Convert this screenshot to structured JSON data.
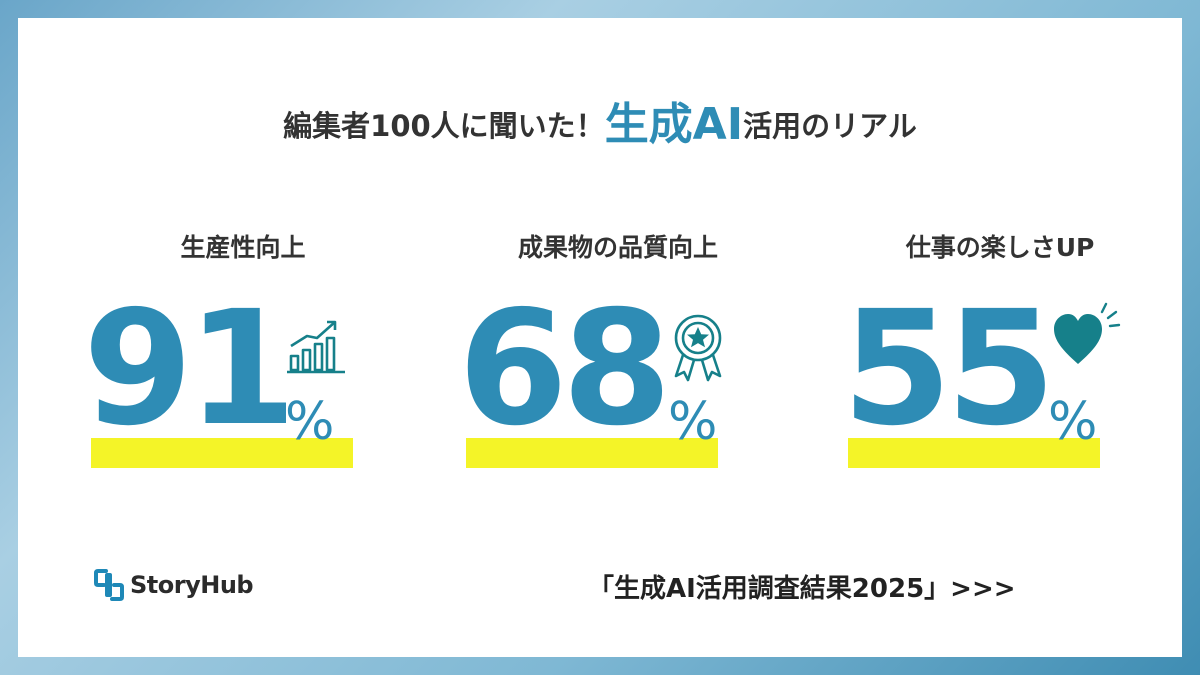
{
  "title": {
    "prefix": "編集者100人に聞いた！",
    "accent": "生成AI",
    "suffix": "活用のリアル"
  },
  "stats": [
    {
      "label": "生産性向上",
      "value": "91",
      "unit": "%",
      "icon": "growth-chart-icon"
    },
    {
      "label": "成果物の品質向上",
      "value": "68",
      "unit": "%",
      "icon": "award-ribbon-icon"
    },
    {
      "label": "仕事の楽しさUP",
      "value": "55",
      "unit": "%",
      "icon": "heart-icon"
    }
  ],
  "logo": {
    "text": "StoryHub"
  },
  "cta": {
    "text": "「生成AI活用調査結果2025」>>>"
  },
  "colors": {
    "accent": "#2e8cb5",
    "highlight": "#f4f428",
    "icon": "#16808a",
    "text": "#333333"
  }
}
